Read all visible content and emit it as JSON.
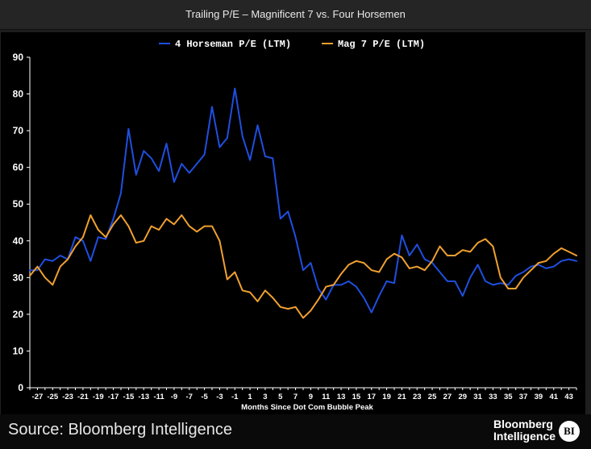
{
  "header": {
    "title": "Trailing P/E – Magnificent 7 vs. Four Horsemen"
  },
  "footer": {
    "source": "Source: Bloomberg Intelligence",
    "brand_line1": "Bloomberg",
    "brand_line2": "Intelligence",
    "badge": "BI"
  },
  "chart_data": {
    "type": "line",
    "xlabel": "Months Since Dot Com Bubble Peak",
    "ylabel": "",
    "ylim": [
      0,
      90
    ],
    "yticks": [
      0,
      10,
      20,
      30,
      40,
      50,
      60,
      70,
      80,
      90
    ],
    "xlim": [
      -28,
      44
    ],
    "xticks": [
      -27,
      -25,
      -23,
      -21,
      -19,
      -17,
      -15,
      -13,
      -11,
      -9,
      -7,
      -5,
      -3,
      -1,
      1,
      3,
      5,
      7,
      9,
      11,
      13,
      15,
      17,
      19,
      21,
      23,
      25,
      27,
      29,
      31,
      33,
      35,
      37,
      39,
      41,
      43
    ],
    "grid": false,
    "legend_position": "top-center",
    "series": [
      {
        "name": "4 Horseman P/E (LTM)",
        "color": "#1f4fe0",
        "x": [
          -28,
          -27,
          -26,
          -25,
          -24,
          -23,
          -22,
          -21,
          -20,
          -19,
          -18,
          -17,
          -16,
          -15,
          -14,
          -13,
          -12,
          -11,
          -10,
          -9,
          -8,
          -7,
          -6,
          -5,
          -4,
          -3,
          -2,
          -1,
          0,
          1,
          2,
          3,
          4,
          5,
          6,
          7,
          8,
          9,
          10,
          11,
          12,
          13,
          14,
          15,
          16,
          17,
          18,
          19,
          20,
          21,
          22,
          23,
          24,
          25,
          26,
          27,
          28,
          29,
          30,
          31,
          32,
          33,
          34,
          35,
          36,
          37,
          38,
          39,
          40,
          41,
          42,
          43,
          44
        ],
        "values": [
          32,
          32,
          35,
          34.5,
          36,
          35,
          41,
          40,
          34.5,
          41,
          40.5,
          46,
          53,
          70.5,
          58,
          64.5,
          62.5,
          59,
          66.5,
          56,
          61,
          58.5,
          61,
          63.5,
          76.5,
          65.5,
          68,
          81.5,
          68.5,
          62,
          71.5,
          63,
          62.5,
          46,
          48,
          41,
          32,
          34,
          27,
          24,
          28,
          28,
          29,
          27.5,
          24.5,
          20.5,
          25,
          29,
          28.5,
          41.5,
          36,
          39,
          35,
          34,
          31.5,
          29,
          29,
          25,
          30,
          33.5,
          29,
          28,
          28.5,
          28,
          30.5,
          31.5,
          33,
          33.5,
          32.5,
          33,
          34.5,
          35,
          34.5
        ]
      },
      {
        "name": "Mag 7 P/E (LTM)",
        "color": "#f0a030",
        "x": [
          -28,
          -27,
          -26,
          -25,
          -24,
          -23,
          -22,
          -21,
          -20,
          -19,
          -18,
          -17,
          -16,
          -15,
          -14,
          -13,
          -12,
          -11,
          -10,
          -9,
          -8,
          -7,
          -6,
          -5,
          -4,
          -3,
          -2,
          -1,
          0,
          1,
          2,
          3,
          4,
          5,
          6,
          7,
          8,
          9,
          10,
          11,
          12,
          13,
          14,
          15,
          16,
          17,
          18,
          19,
          20,
          21,
          22,
          23,
          24,
          25,
          26,
          27,
          28,
          29,
          30,
          31,
          32,
          33,
          34,
          35,
          36,
          37,
          38,
          39,
          40,
          41,
          42,
          43,
          44
        ],
        "values": [
          30.5,
          33,
          30,
          28,
          33,
          35,
          38.5,
          41,
          47,
          43,
          41,
          44.5,
          47,
          44,
          39.5,
          40,
          44,
          43,
          46,
          44.5,
          47,
          44,
          42.5,
          44,
          44,
          40,
          29.5,
          31.5,
          26.5,
          26,
          23.5,
          26.5,
          24.5,
          22,
          21.5,
          22,
          19,
          21,
          24,
          27.5,
          28,
          31,
          33.5,
          34.5,
          34,
          32,
          31.5,
          35,
          36.5,
          35.5,
          32.5,
          33,
          32,
          34.5,
          38.5,
          36,
          36,
          37.5,
          37,
          39.5,
          40.5,
          38.5,
          30,
          27,
          27,
          30,
          32,
          34,
          34.5,
          36.5,
          38,
          37,
          36
        ]
      }
    ]
  }
}
